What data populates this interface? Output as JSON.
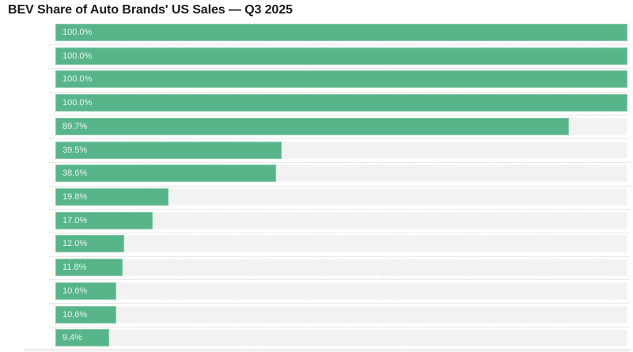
{
  "title": "BEV Share of Auto Brands' US Sales — Q3 2025",
  "colors": {
    "bar": "#57b589",
    "track": "#f2f2f2",
    "value_label": "rgba(255,255,255,0.87)",
    "separator": "#d6d6d6",
    "title_text": "#1a1a1a",
    "background": "#ffffff"
  },
  "chart_data": {
    "type": "bar",
    "orientation": "horizontal",
    "title": "BEV Share of Auto Brands' US Sales — Q3 2025",
    "xlabel": "",
    "ylabel": "",
    "xlim": [
      0,
      100
    ],
    "unit": "%",
    "grid": "dotted row separators, no axis ticks visible",
    "legend": "none",
    "category_labels_visible": false,
    "bars": [
      {
        "label": "100.0%",
        "value": 100.0
      },
      {
        "label": "100.0%",
        "value": 100.0
      },
      {
        "label": "100.0%",
        "value": 100.0
      },
      {
        "label": "100.0%",
        "value": 100.0
      },
      {
        "label": "89.7%",
        "value": 89.7
      },
      {
        "label": "39.5%",
        "value": 39.5
      },
      {
        "label": "38.6%",
        "value": 38.6
      },
      {
        "label": "19.8%",
        "value": 19.8
      },
      {
        "label": "17.0%",
        "value": 17.0
      },
      {
        "label": "12.0%",
        "value": 12.0
      },
      {
        "label": "11.8%",
        "value": 11.8
      },
      {
        "label": "10.6%",
        "value": 10.6
      },
      {
        "label": "10.6%",
        "value": 10.6
      },
      {
        "label": "9.4%",
        "value": 9.4
      }
    ]
  }
}
